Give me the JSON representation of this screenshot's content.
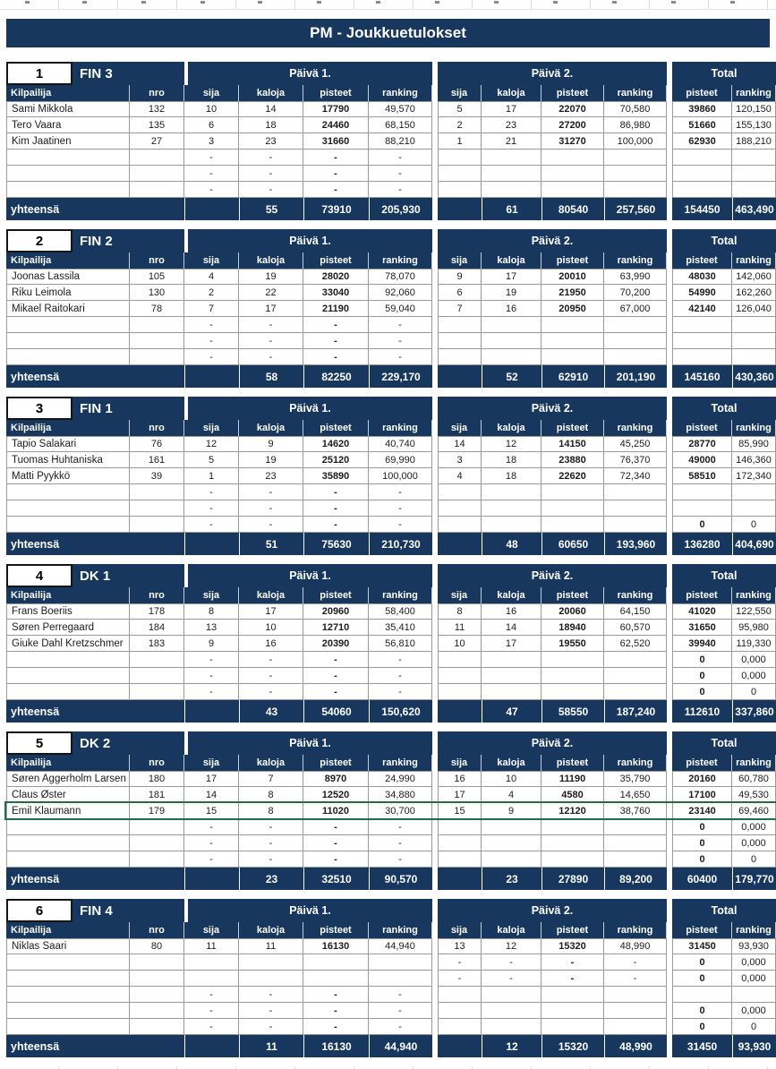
{
  "title": "PM - Joukkuetulokset",
  "colors": {
    "navy": "#17375E",
    "selection_green": "#1E7145",
    "gridline": "#9b9b9b"
  },
  "headers": {
    "day1": "Päivä 1.",
    "day2": "Päivä 2.",
    "total": "Total",
    "totals_label": "yhteensä",
    "columns": {
      "kilpailija": "Kilpailija",
      "nro": "nro",
      "sija": "sija",
      "kaloja": "kaloja",
      "pisteet": "pisteet",
      "ranking": "ranking"
    }
  },
  "sections": [
    {
      "rank": "1",
      "team": "FIN 3",
      "rows": [
        {
          "name": "Sami Mikkola",
          "nro": "132",
          "d1": [
            "10",
            "14",
            "17790",
            "49,570"
          ],
          "d2": [
            "5",
            "17",
            "22070",
            "70,580"
          ],
          "tot": [
            "39860",
            "120,150"
          ]
        },
        {
          "name": "Tero Vaara",
          "nro": "135",
          "d1": [
            "6",
            "18",
            "24460",
            "68,150"
          ],
          "d2": [
            "2",
            "23",
            "27200",
            "86,980"
          ],
          "tot": [
            "51660",
            "155,130"
          ]
        },
        {
          "name": "Kim Jaatinen",
          "nro": "27",
          "d1": [
            "3",
            "23",
            "31660",
            "88,210"
          ],
          "d2": [
            "1",
            "21",
            "31270",
            "100,000"
          ],
          "tot": [
            "62930",
            "188,210"
          ]
        },
        {
          "name": "",
          "nro": "",
          "d1": [
            "-",
            "-",
            "-",
            "-"
          ],
          "d2": [
            "",
            "",
            "",
            ""
          ],
          "tot": [
            "",
            ""
          ]
        },
        {
          "name": "",
          "nro": "",
          "d1": [
            "-",
            "-",
            "-",
            "-"
          ],
          "d2": [
            "",
            "",
            "",
            ""
          ],
          "tot": [
            "",
            ""
          ]
        },
        {
          "name": "",
          "nro": "",
          "d1": [
            "-",
            "-",
            "-",
            "-"
          ],
          "d2": [
            "",
            "",
            "",
            ""
          ],
          "tot": [
            "",
            ""
          ]
        }
      ],
      "totals": {
        "d1": [
          "55",
          "73910",
          "205,930"
        ],
        "d2": [
          "61",
          "80540",
          "257,560"
        ],
        "tot": [
          "154450",
          "463,490"
        ]
      }
    },
    {
      "rank": "2",
      "team": "FIN 2",
      "rows": [
        {
          "name": "Joonas Lassila",
          "nro": "105",
          "d1": [
            "4",
            "19",
            "28020",
            "78,070"
          ],
          "d2": [
            "9",
            "17",
            "20010",
            "63,990"
          ],
          "tot": [
            "48030",
            "142,060"
          ]
        },
        {
          "name": "Riku Leimola",
          "nro": "130",
          "d1": [
            "2",
            "22",
            "33040",
            "92,060"
          ],
          "d2": [
            "6",
            "19",
            "21950",
            "70,200"
          ],
          "tot": [
            "54990",
            "162,260"
          ]
        },
        {
          "name": "Mikael Raitokari",
          "nro": "78",
          "d1": [
            "7",
            "17",
            "21190",
            "59,040"
          ],
          "d2": [
            "7",
            "16",
            "20950",
            "67,000"
          ],
          "tot": [
            "42140",
            "126,040"
          ]
        },
        {
          "name": "",
          "nro": "",
          "d1": [
            "-",
            "-",
            "-",
            "-"
          ],
          "d2": [
            "",
            "",
            "",
            ""
          ],
          "tot": [
            "",
            ""
          ]
        },
        {
          "name": "",
          "nro": "",
          "d1": [
            "-",
            "-",
            "-",
            "-"
          ],
          "d2": [
            "",
            "",
            "",
            ""
          ],
          "tot": [
            "",
            ""
          ]
        },
        {
          "name": "",
          "nro": "",
          "d1": [
            "-",
            "-",
            "-",
            "-"
          ],
          "d2": [
            "",
            "",
            "",
            ""
          ],
          "tot": [
            "",
            ""
          ]
        }
      ],
      "totals": {
        "d1": [
          "58",
          "82250",
          "229,170"
        ],
        "d2": [
          "52",
          "62910",
          "201,190"
        ],
        "tot": [
          "145160",
          "430,360"
        ]
      }
    },
    {
      "rank": "3",
      "team": "FIN 1",
      "rows": [
        {
          "name": "Tapio Salakari",
          "nro": "76",
          "d1": [
            "12",
            "9",
            "14620",
            "40,740"
          ],
          "d2": [
            "14",
            "12",
            "14150",
            "45,250"
          ],
          "tot": [
            "28770",
            "85,990"
          ]
        },
        {
          "name": "Tuomas Huhtaniska",
          "nro": "161",
          "d1": [
            "5",
            "19",
            "25120",
            "69,990"
          ],
          "d2": [
            "3",
            "18",
            "23880",
            "76,370"
          ],
          "tot": [
            "49000",
            "146,360"
          ]
        },
        {
          "name": "Matti Pyykkö",
          "nro": "39",
          "d1": [
            "1",
            "23",
            "35890",
            "100,000"
          ],
          "d2": [
            "4",
            "18",
            "22620",
            "72,340"
          ],
          "tot": [
            "58510",
            "172,340"
          ]
        },
        {
          "name": "",
          "nro": "",
          "d1": [
            "-",
            "-",
            "-",
            "-"
          ],
          "d2": [
            "",
            "",
            "",
            ""
          ],
          "tot": [
            "",
            ""
          ]
        },
        {
          "name": "",
          "nro": "",
          "d1": [
            "-",
            "-",
            "-",
            "-"
          ],
          "d2": [
            "",
            "",
            "",
            ""
          ],
          "tot": [
            "",
            ""
          ]
        },
        {
          "name": "",
          "nro": "",
          "d1": [
            "-",
            "-",
            "-",
            "-"
          ],
          "d2": [
            "",
            "",
            "",
            ""
          ],
          "tot": [
            "0",
            "0"
          ]
        }
      ],
      "totals": {
        "d1": [
          "51",
          "75630",
          "210,730"
        ],
        "d2": [
          "48",
          "60650",
          "193,960"
        ],
        "tot": [
          "136280",
          "404,690"
        ]
      }
    },
    {
      "rank": "4",
      "team": "DK 1",
      "rows": [
        {
          "name": "Frans Boeriis",
          "nro": "178",
          "d1": [
            "8",
            "17",
            "20960",
            "58,400"
          ],
          "d2": [
            "8",
            "16",
            "20060",
            "64,150"
          ],
          "tot": [
            "41020",
            "122,550"
          ]
        },
        {
          "name": "Søren Perregaard",
          "nro": "184",
          "d1": [
            "13",
            "10",
            "12710",
            "35,410"
          ],
          "d2": [
            "11",
            "14",
            "18940",
            "60,570"
          ],
          "tot": [
            "31650",
            "95,980"
          ]
        },
        {
          "name": "Giuke Dahl Kretzschmer",
          "nro": "183",
          "d1": [
            "9",
            "16",
            "20390",
            "56,810"
          ],
          "d2": [
            "10",
            "17",
            "19550",
            "62,520"
          ],
          "tot": [
            "39940",
            "119,330"
          ]
        },
        {
          "name": "",
          "nro": "",
          "d1": [
            "-",
            "-",
            "-",
            "-"
          ],
          "d2": [
            "",
            "",
            "",
            ""
          ],
          "tot": [
            "0",
            "0,000"
          ]
        },
        {
          "name": "",
          "nro": "",
          "d1": [
            "-",
            "-",
            "-",
            "-"
          ],
          "d2": [
            "",
            "",
            "",
            ""
          ],
          "tot": [
            "0",
            "0,000"
          ]
        },
        {
          "name": "",
          "nro": "",
          "d1": [
            "-",
            "-",
            "-",
            "-"
          ],
          "d2": [
            "",
            "",
            "",
            ""
          ],
          "tot": [
            "0",
            "0"
          ]
        }
      ],
      "totals": {
        "d1": [
          "43",
          "54060",
          "150,620"
        ],
        "d2": [
          "47",
          "58550",
          "187,240"
        ],
        "tot": [
          "112610",
          "337,860"
        ]
      }
    },
    {
      "rank": "5",
      "team": "DK 2",
      "rows": [
        {
          "name": "Søren Aggerholm Larsen",
          "nro": "180",
          "d1": [
            "17",
            "7",
            "8970",
            "24,990"
          ],
          "d2": [
            "16",
            "10",
            "11190",
            "35,790"
          ],
          "tot": [
            "20160",
            "60,780"
          ]
        },
        {
          "name": "Claus Øster",
          "nro": "181",
          "d1": [
            "14",
            "8",
            "12520",
            "34,880"
          ],
          "d2": [
            "17",
            "4",
            "4580",
            "14,650"
          ],
          "tot": [
            "17100",
            "49,530"
          ]
        },
        {
          "name": "Emil Klaumann",
          "nro": "179",
          "d1": [
            "15",
            "8",
            "11020",
            "30,700"
          ],
          "d2": [
            "15",
            "9",
            "12120",
            "38,760"
          ],
          "tot": [
            "23140",
            "69,460"
          ],
          "selected": true
        },
        {
          "name": "",
          "nro": "",
          "d1": [
            "-",
            "-",
            "-",
            "-"
          ],
          "d2": [
            "",
            "",
            "",
            ""
          ],
          "tot": [
            "0",
            "0,000"
          ]
        },
        {
          "name": "",
          "nro": "",
          "d1": [
            "-",
            "-",
            "-",
            "-"
          ],
          "d2": [
            "",
            "",
            "",
            ""
          ],
          "tot": [
            "0",
            "0,000"
          ]
        },
        {
          "name": "",
          "nro": "",
          "d1": [
            "-",
            "-",
            "-",
            "-"
          ],
          "d2": [
            "",
            "",
            "",
            ""
          ],
          "tot": [
            "0",
            "0"
          ]
        }
      ],
      "totals": {
        "d1": [
          "23",
          "32510",
          "90,570"
        ],
        "d2": [
          "23",
          "27890",
          "89,200"
        ],
        "tot": [
          "60400",
          "179,770"
        ]
      }
    },
    {
      "rank": "6",
      "team": "FIN 4",
      "rows": [
        {
          "name": "Niklas Saari",
          "nro": "80",
          "d1": [
            "11",
            "11",
            "16130",
            "44,940"
          ],
          "d2": [
            "13",
            "12",
            "15320",
            "48,990"
          ],
          "tot": [
            "31450",
            "93,930"
          ]
        },
        {
          "name": "",
          "nro": "",
          "d1": [
            "",
            "",
            "",
            ""
          ],
          "d2": [
            "-",
            "-",
            "-",
            "-"
          ],
          "tot": [
            "0",
            "0,000"
          ]
        },
        {
          "name": "",
          "nro": "",
          "d1": [
            "",
            "",
            "",
            ""
          ],
          "d2": [
            "-",
            "-",
            "-",
            "-"
          ],
          "tot": [
            "0",
            "0,000"
          ]
        },
        {
          "name": "",
          "nro": "",
          "d1": [
            "-",
            "-",
            "-",
            "-"
          ],
          "d2": [
            "",
            "",
            "",
            ""
          ],
          "tot": [
            "",
            ""
          ]
        },
        {
          "name": "",
          "nro": "",
          "d1": [
            "-",
            "-",
            "-",
            "-"
          ],
          "d2": [
            "",
            "",
            "",
            ""
          ],
          "tot": [
            "0",
            "0,000"
          ]
        },
        {
          "name": "",
          "nro": "",
          "d1": [
            "-",
            "-",
            "-",
            "-"
          ],
          "d2": [
            "",
            "",
            "",
            ""
          ],
          "tot": [
            "0",
            "0"
          ]
        }
      ],
      "totals": {
        "d1": [
          "11",
          "16130",
          "44,940"
        ],
        "d2": [
          "12",
          "15320",
          "48,990"
        ],
        "tot": [
          "31450",
          "93,930"
        ]
      }
    }
  ]
}
